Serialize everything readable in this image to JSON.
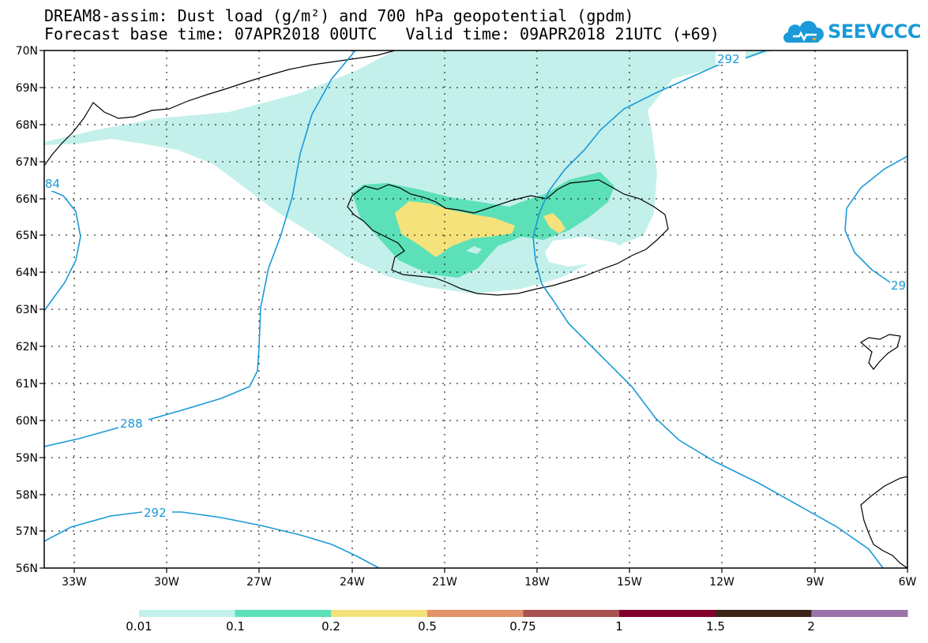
{
  "header": {
    "title_line_1": "DREAM8-assim: Dust load (g/m²) and 700 hPa geopotential (gpdm)",
    "title_line_2": "Forecast base time: 07APR2018 00UTC   Valid time: 09APR2018 21UTC (+69)"
  },
  "logo": {
    "text": "SEEVCCC",
    "color": "#1a9ad8"
  },
  "map": {
    "lon_range": [
      -34,
      -6
    ],
    "lat_range": [
      56,
      70
    ],
    "lon_ticks": [
      "33W",
      "30W",
      "27W",
      "24W",
      "21W",
      "18W",
      "15W",
      "12W",
      "9W",
      "6W"
    ],
    "lat_ticks": [
      "70N",
      "69N",
      "68N",
      "67N",
      "66N",
      "65N",
      "64N",
      "63N",
      "62N",
      "61N",
      "60N",
      "59N",
      "58N",
      "57N",
      "56N"
    ],
    "gridlines": "dotted",
    "contour_color": "#1a9ad8",
    "contour_labels": [
      "292",
      "288",
      "292",
      "84",
      "29"
    ]
  },
  "legend": {
    "bins": [
      {
        "color": "#c3f0eb"
      },
      {
        "color": "#5ce0b8"
      },
      {
        "color": "#f5e27a"
      },
      {
        "color": "#e3926a"
      },
      {
        "color": "#a85252"
      },
      {
        "color": "#82002e"
      },
      {
        "color": "#3c2418"
      },
      {
        "color": "#9a74a8"
      }
    ],
    "labels": [
      "0.01",
      "0.1",
      "0.2",
      "0.5",
      "0.75",
      "1",
      "1.5",
      "2"
    ]
  }
}
